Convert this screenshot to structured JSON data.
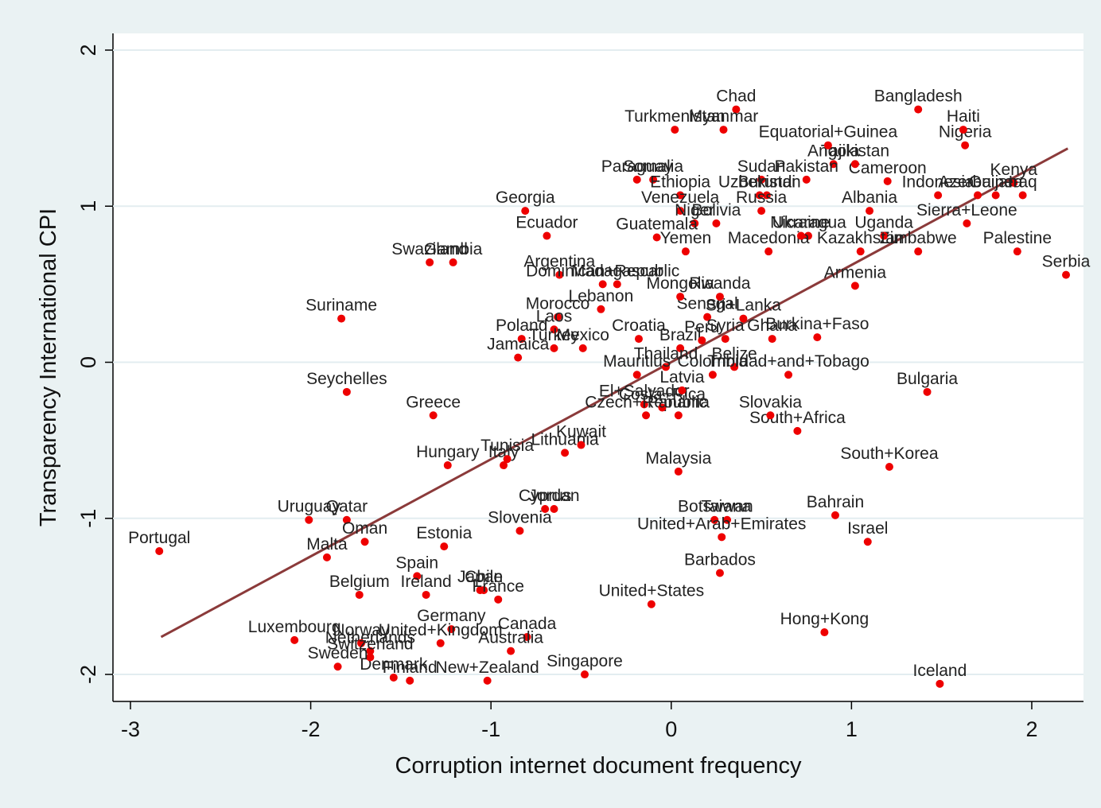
{
  "chart_data": {
    "type": "scatter",
    "xlabel": "Corruption internet document frequency",
    "ylabel": "Transparency International CPI",
    "xlim": [
      -3.097,
      2.287
    ],
    "ylim": [
      -2.173,
      2.107
    ],
    "xticks": [
      -3,
      -2,
      -1,
      0,
      1,
      2
    ],
    "yticks": [
      -2,
      -1,
      0,
      1,
      2
    ],
    "grid": true,
    "series": [
      {
        "color": "#ee0000",
        "labels": [
          "Portugal",
          "Uruguay",
          "Qatar",
          "Oman",
          "Malta",
          "Suriname",
          "Seychelles",
          "Swaziland",
          "Gambia",
          "Greece",
          "Hungary",
          "Italy",
          "Tunisia",
          "Georgia",
          "Ecuador",
          "Argentina",
          "Morocco",
          "Laos",
          "Poland",
          "Jamaica",
          "Turkey",
          "Mexico",
          "Lebanon",
          "Dominican+Republic",
          "Madagascar",
          "Lithuania",
          "Kuwait",
          "Jordan",
          "Cyprus",
          "Slovenia",
          "Estonia",
          "Spain",
          "Belgium",
          "Ireland",
          "Chile",
          "Japan",
          "France",
          "Germany",
          "United+Kingdom",
          "Canada",
          "Australia",
          "Singapore",
          "New+Zealand",
          "Finland",
          "Denmark",
          "Luxembourg",
          "Netherlands",
          "Norway",
          "Switzerland",
          "Sweden",
          "Iceland",
          "Hong+Kong",
          "United+States",
          "Barbados",
          "Malaysia",
          "Botswana",
          "Taiwan",
          "United+Arab+Emirates",
          "Bahrain",
          "Israel",
          "South+Korea",
          "South+Africa",
          "Slovakia",
          "Bulgaria",
          "Trinidad+and+Tobago",
          "Belize",
          "Colombia",
          "Brazil",
          "Thailand",
          "Peru",
          "Croatia",
          "Mauritius",
          "El+Salvador",
          "Czech+Republic",
          "Costa+Rica",
          "Latvia",
          "Panama",
          "Ghana",
          "Burkina+Faso",
          "Sri+Lanka",
          "Senegal",
          "Rwanda",
          "Mongolia",
          "Armenia",
          "Serbia",
          "Palestine",
          "Zimbabwe",
          "Sierra+Leone",
          "Kenya",
          "Azerbaijan",
          "Iraq",
          "Guinea",
          "Indonesia",
          "Cameroon",
          "Tajikistan",
          "Angola",
          "Equatorial+Guinea",
          "Nigeria",
          "Haiti",
          "Bangladesh",
          "Chad",
          "Myanmar",
          "Turkmenistan",
          "Paraguay",
          "Somalia",
          "Ethiopia",
          "Sudan",
          "Pakistan",
          "Uzbekistan",
          "Burundi",
          "Venezuela",
          "Niger",
          "Russia",
          "Albania",
          "Uganda",
          "Guatemala",
          "Bolivia",
          "Nicaragua",
          "Kazakhstan",
          "Yemen",
          "Macedonia",
          "Ukraine",
          "Syria"
        ],
        "x": [
          -2.84,
          -2.01,
          -1.8,
          -1.7,
          -1.91,
          -1.83,
          -1.8,
          -1.34,
          -1.21,
          -1.32,
          -1.24,
          -0.93,
          -0.91,
          -0.81,
          -0.69,
          -0.62,
          -0.63,
          -0.65,
          -0.83,
          -0.85,
          -0.65,
          -0.49,
          -0.39,
          -0.38,
          -0.3,
          -0.59,
          -0.5,
          -0.65,
          -0.7,
          -0.84,
          -1.26,
          -1.41,
          -1.73,
          -1.36,
          -1.04,
          -1.06,
          -0.96,
          -1.22,
          -1.28,
          -0.8,
          -0.89,
          -0.48,
          -1.02,
          -1.45,
          -1.54,
          -2.09,
          -1.67,
          -1.72,
          -1.67,
          -1.85,
          1.49,
          0.85,
          -0.11,
          0.27,
          0.04,
          0.24,
          0.31,
          0.28,
          0.91,
          1.09,
          1.21,
          0.7,
          0.55,
          1.42,
          0.65,
          0.35,
          0.23,
          0.05,
          -0.03,
          0.17,
          -0.18,
          -0.19,
          -0.15,
          -0.14,
          -0.05,
          0.06,
          0.04,
          0.56,
          0.81,
          0.4,
          0.2,
          0.27,
          0.05,
          1.02,
          2.19,
          1.92,
          1.37,
          1.64,
          1.9,
          1.7,
          1.95,
          1.8,
          1.48,
          1.2,
          1.02,
          0.9,
          0.87,
          1.63,
          1.62,
          1.37,
          0.36,
          0.29,
          0.02,
          -0.19,
          -0.1,
          0.05,
          0.5,
          0.75,
          0.49,
          0.53,
          0.05,
          0.13,
          0.5,
          1.1,
          1.18,
          -0.08,
          0.25,
          0.76,
          1.05,
          0.08,
          0.54,
          0.72,
          0.3
        ],
        "values": [
          -1.21,
          -1.01,
          -1.01,
          -1.15,
          -1.25,
          0.28,
          -0.19,
          0.64,
          0.64,
          -0.34,
          -0.66,
          -0.66,
          -0.62,
          0.97,
          0.81,
          0.56,
          0.29,
          0.21,
          0.15,
          0.03,
          0.09,
          0.09,
          0.34,
          0.5,
          0.5,
          -0.58,
          -0.53,
          -0.94,
          -0.94,
          -1.08,
          -1.18,
          -1.37,
          -1.49,
          -1.49,
          -1.46,
          -1.46,
          -1.52,
          -1.71,
          -1.8,
          -1.76,
          -1.85,
          -2.0,
          -2.04,
          -2.04,
          -2.02,
          -1.78,
          -1.85,
          -1.8,
          -1.89,
          -1.95,
          -2.06,
          -1.73,
          -1.55,
          -1.35,
          -0.7,
          -1.01,
          -1.01,
          -1.12,
          -0.98,
          -1.15,
          -0.67,
          -0.44,
          -0.34,
          -0.19,
          -0.08,
          -0.03,
          -0.08,
          0.09,
          -0.03,
          0.14,
          0.15,
          -0.08,
          -0.27,
          -0.34,
          -0.29,
          -0.18,
          -0.34,
          0.15,
          0.16,
          0.28,
          0.29,
          0.42,
          0.42,
          0.49,
          0.56,
          0.71,
          0.71,
          0.89,
          1.15,
          1.07,
          1.07,
          1.07,
          1.07,
          1.16,
          1.27,
          1.27,
          1.39,
          1.39,
          1.49,
          1.62,
          1.62,
          1.49,
          1.49,
          1.17,
          1.17,
          1.07,
          1.17,
          1.17,
          1.07,
          1.07,
          0.97,
          0.89,
          0.97,
          0.97,
          0.81,
          0.8,
          0.89,
          0.81,
          0.71,
          0.71,
          0.71,
          0.81,
          0.15
        ]
      }
    ],
    "fit_line": {
      "color": "#8b3a3a",
      "x": [
        -2.83,
        2.2
      ],
      "values": [
        -1.76,
        1.37
      ]
    }
  }
}
